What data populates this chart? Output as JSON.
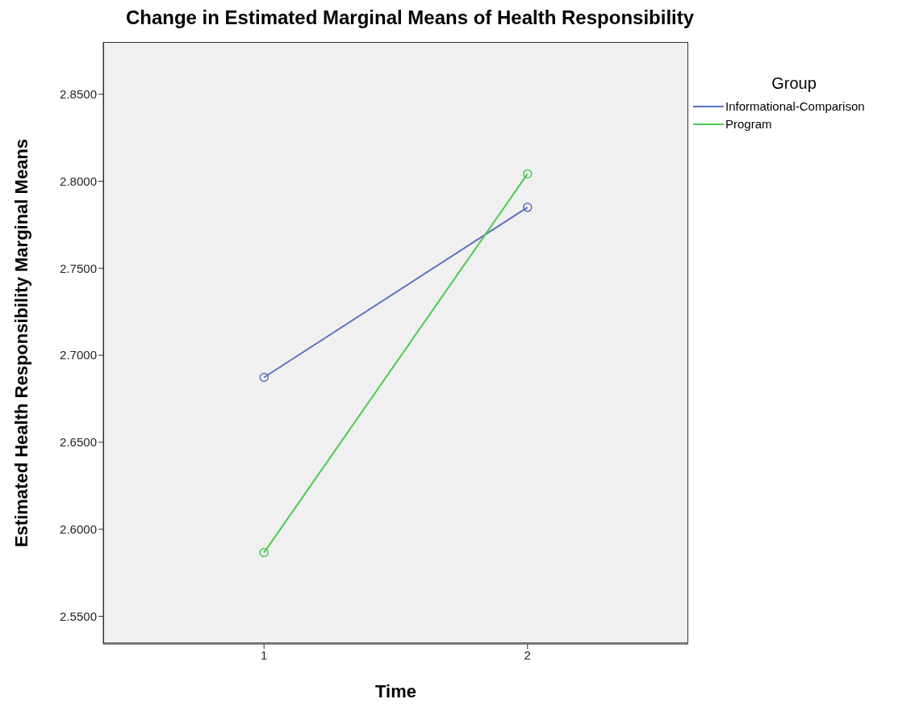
{
  "chart_data": {
    "type": "line",
    "title": "Change in Estimated Marginal Means of Health Responsibility",
    "xlabel": "Time",
    "ylabel": "Estimated Health Responsibility Marginal Means",
    "legend_title": "Group",
    "x": [
      1,
      2
    ],
    "series": [
      {
        "name": "Informational-Comparison",
        "color": "#5a6ec4",
        "values": [
          2.6873,
          2.785
        ]
      },
      {
        "name": "Program",
        "color": "#4fc94f",
        "values": [
          2.5866,
          2.8042
        ]
      }
    ],
    "xlim": [
      0.39,
      2.61
    ],
    "xticks": [
      1,
      2
    ],
    "ylim": [
      2.534,
      2.88
    ],
    "yticks": [
      {
        "value": 2.55,
        "label": "2.5500"
      },
      {
        "value": 2.6,
        "label": "2.6000"
      },
      {
        "value": 2.65,
        "label": "2.6500"
      },
      {
        "value": 2.7,
        "label": "2.7000"
      },
      {
        "value": 2.75,
        "label": "2.7500"
      },
      {
        "value": 2.8,
        "label": "2.8000"
      },
      {
        "value": 2.85,
        "label": "2.8500"
      }
    ],
    "grid": false,
    "legend": "top right",
    "marker": "circle",
    "line_style": "solid"
  }
}
